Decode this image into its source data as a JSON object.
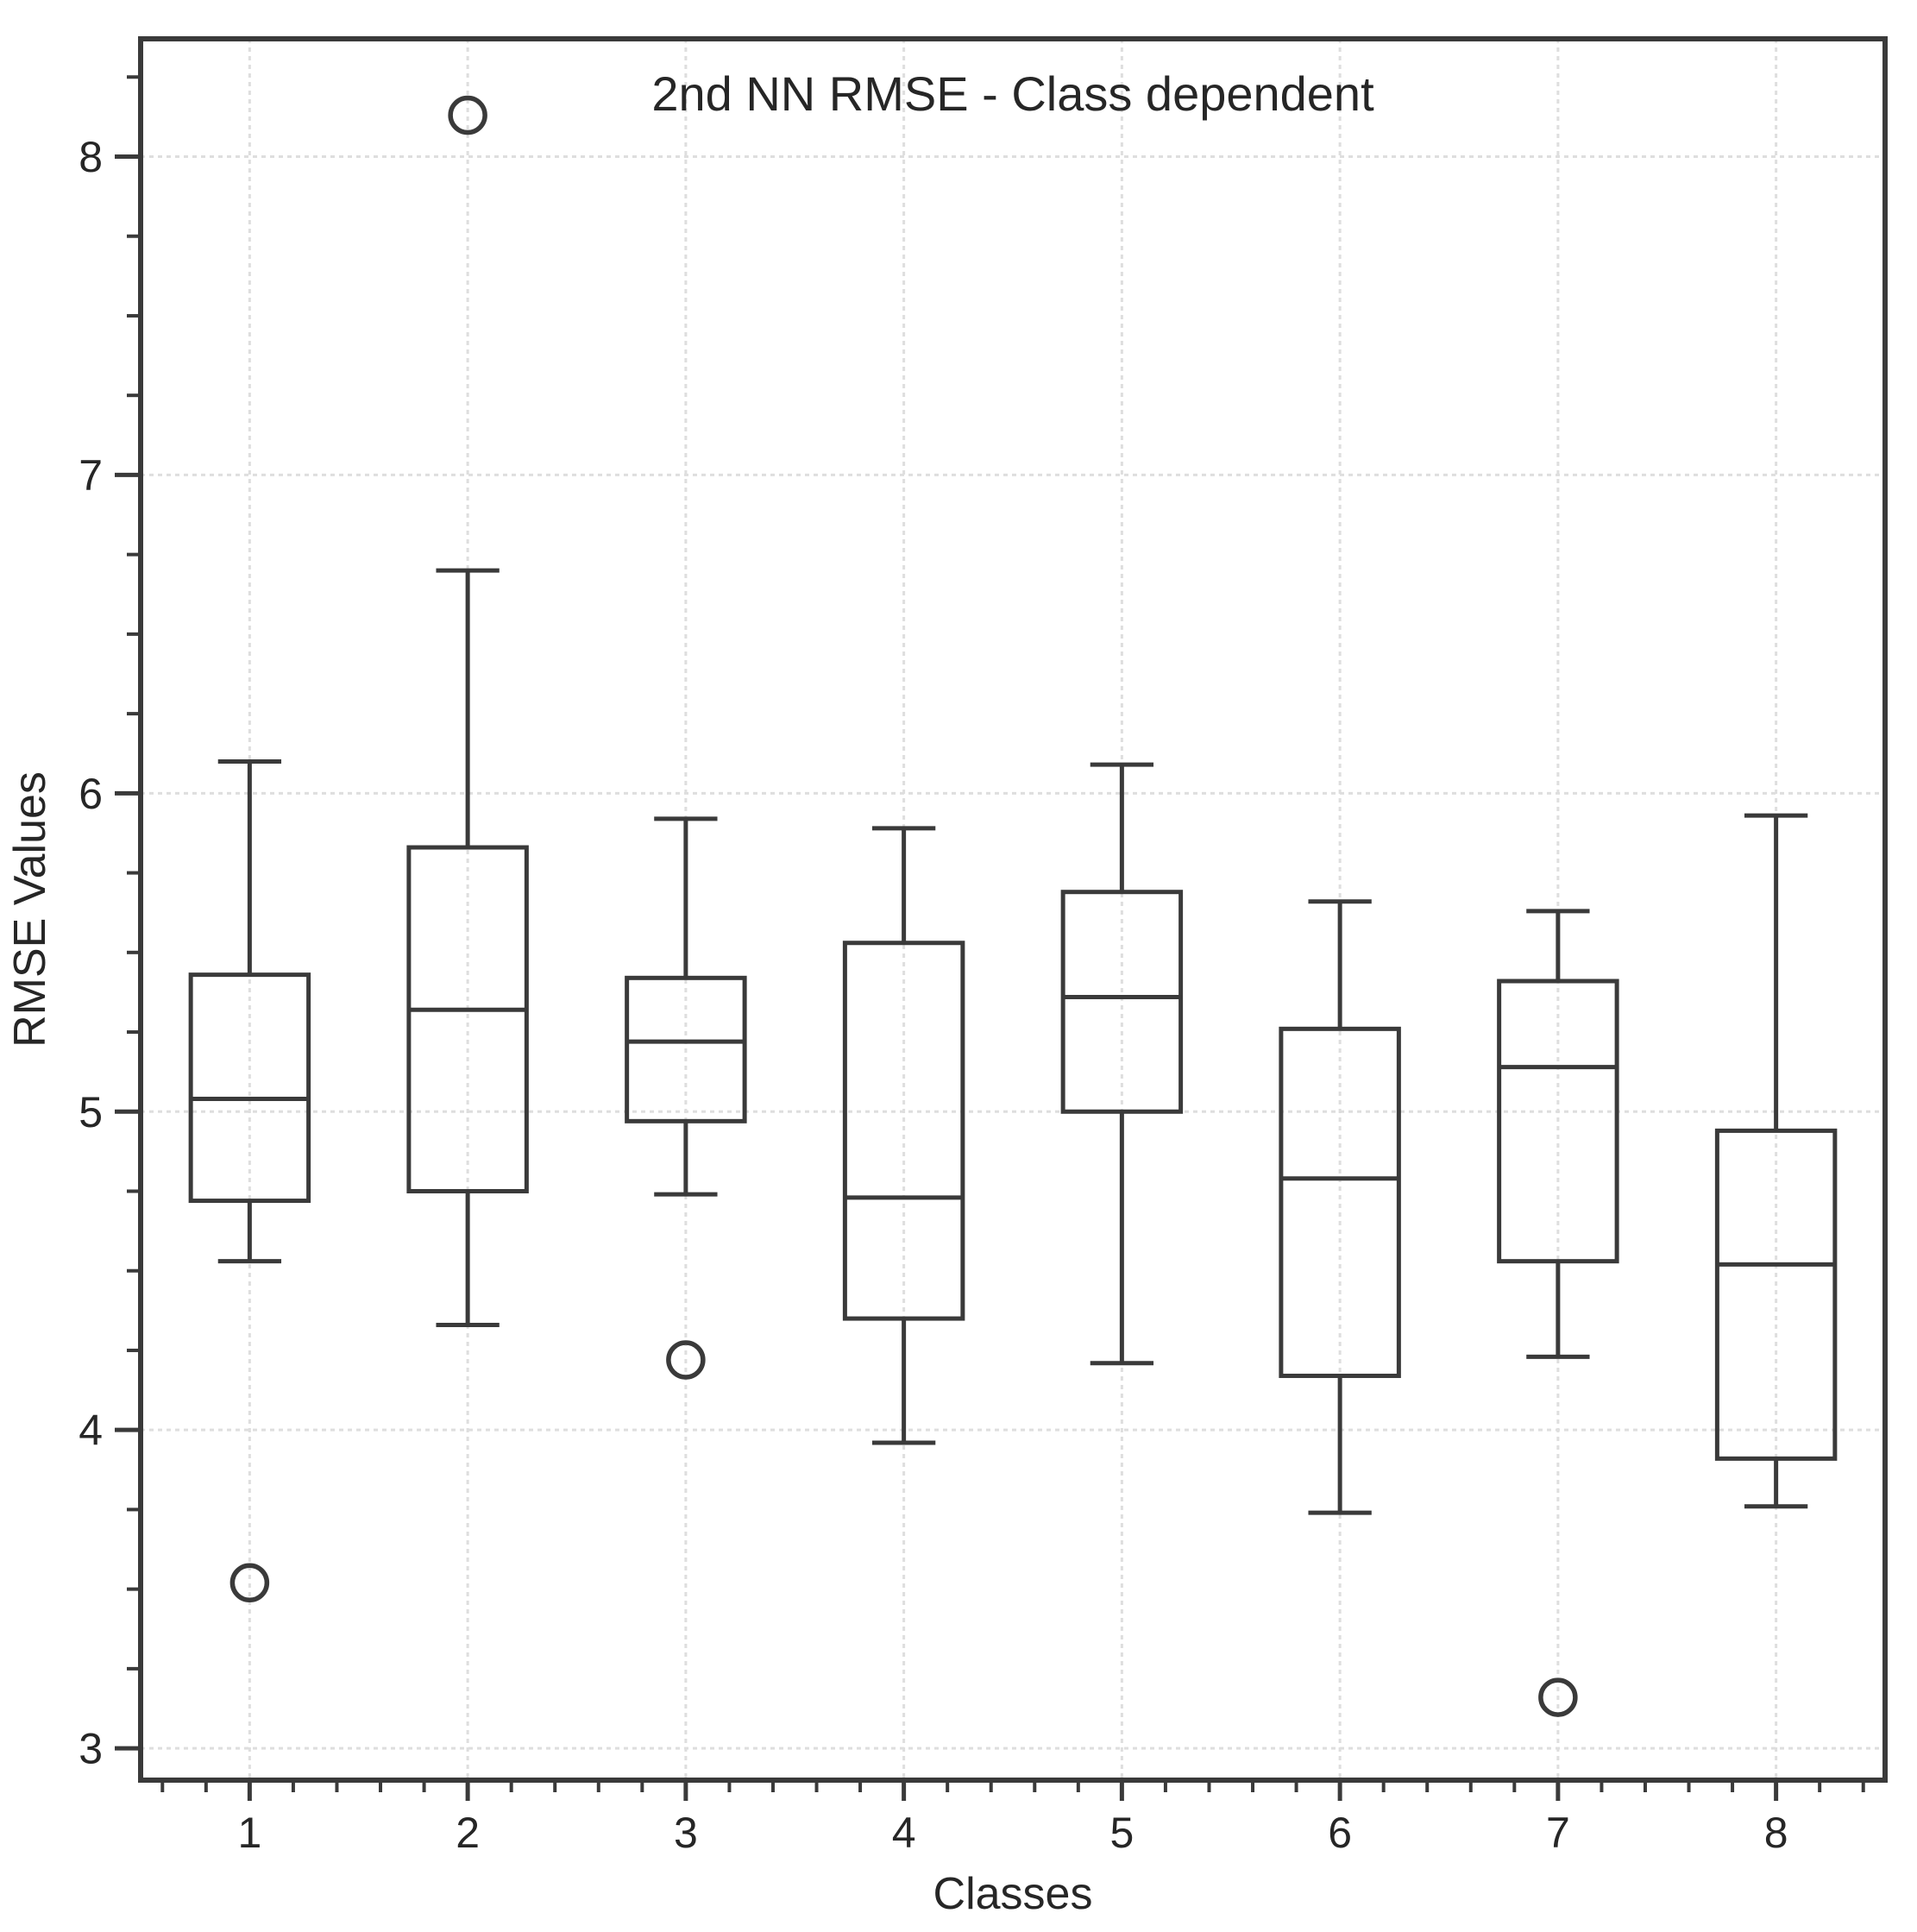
{
  "chart_data": {
    "type": "boxplot",
    "title": "2nd NN RMSE - Class dependent",
    "xlabel": "Classes",
    "ylabel": "RMSE Values",
    "categories": [
      "1",
      "2",
      "3",
      "4",
      "5",
      "6",
      "7",
      "8"
    ],
    "xlim": [
      0.5,
      8.5
    ],
    "ylim": [
      2.9,
      8.37
    ],
    "y_major_ticks": [
      3,
      4,
      5,
      6,
      7,
      8
    ],
    "y_minor_step": 0.25,
    "x_minor_step": 0.2,
    "grid": true,
    "legend": "none",
    "boxes": [
      {
        "class": 1,
        "whisker_low": 4.53,
        "q1": 4.72,
        "median": 5.04,
        "q3": 5.43,
        "whisker_high": 6.1,
        "outliers": [
          3.52
        ]
      },
      {
        "class": 2,
        "whisker_low": 4.33,
        "q1": 4.75,
        "median": 5.32,
        "q3": 5.83,
        "whisker_high": 6.7,
        "outliers": [
          8.13
        ]
      },
      {
        "class": 3,
        "whisker_low": 4.74,
        "q1": 4.97,
        "median": 5.22,
        "q3": 5.42,
        "whisker_high": 5.92,
        "outliers": [
          4.22
        ]
      },
      {
        "class": 4,
        "whisker_low": 3.96,
        "q1": 4.35,
        "median": 4.73,
        "q3": 5.53,
        "whisker_high": 5.89,
        "outliers": []
      },
      {
        "class": 5,
        "whisker_low": 4.21,
        "q1": 5.0,
        "median": 5.36,
        "q3": 5.69,
        "whisker_high": 6.09,
        "outliers": []
      },
      {
        "class": 6,
        "whisker_low": 3.74,
        "q1": 4.17,
        "median": 4.79,
        "q3": 5.26,
        "whisker_high": 5.66,
        "outliers": []
      },
      {
        "class": 7,
        "whisker_low": 4.23,
        "q1": 4.53,
        "median": 5.14,
        "q3": 5.41,
        "whisker_high": 5.63,
        "outliers": [
          3.16
        ]
      },
      {
        "class": 8,
        "whisker_low": 3.76,
        "q1": 3.91,
        "median": 4.52,
        "q3": 4.94,
        "whisker_high": 5.93,
        "outliers": []
      }
    ],
    "colors": {
      "line": "#3a3a3a",
      "spine": "#3a3a3a",
      "grid": "#dedede",
      "text": "#262626",
      "background": "#ffffff"
    }
  }
}
